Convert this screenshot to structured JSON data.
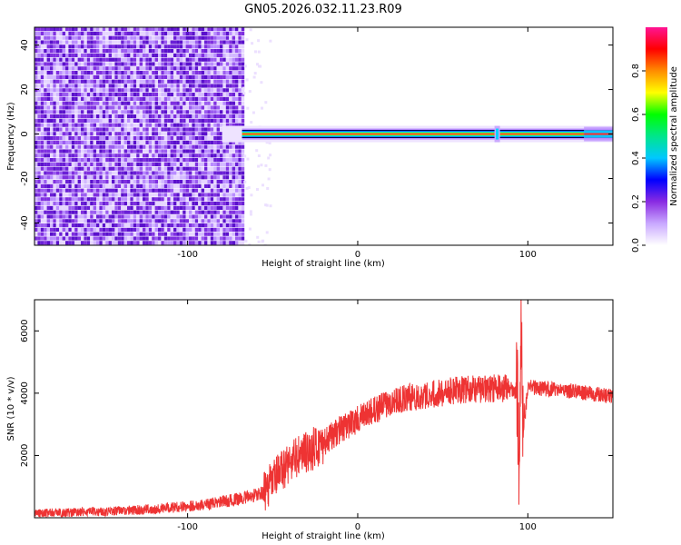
{
  "figure": {
    "title": "GN05.2026.032.11.23.R09"
  },
  "chart_data": [
    {
      "type": "heatmap",
      "xlabel": "Height of straight line (km)",
      "ylabel": "Frequency (Hz)",
      "xlim": [
        -190,
        150
      ],
      "ylim": [
        -50,
        48
      ],
      "x_ticks": [
        -100,
        0,
        100
      ],
      "y_ticks": [
        -40,
        -20,
        0,
        20,
        40
      ],
      "grid": false,
      "colorbar": {
        "label": "Normalized spectral amplitude",
        "range": [
          0,
          1
        ],
        "ticks": [
          0.0,
          0.2,
          0.4,
          0.6,
          0.8
        ],
        "colormap": [
          "#ffffff",
          "#c9a8ff",
          "#8a2be2",
          "#0000ff",
          "#00c8ff",
          "#00e68c",
          "#00ff00",
          "#ffff00",
          "#ff8c00",
          "#ff0000",
          "#ff1493"
        ]
      },
      "noise_region_x": [
        -190,
        -68
      ],
      "carrier": {
        "x": [
          -68,
          150
        ],
        "frequency": 0,
        "amplitude": 1.0
      },
      "burst_x": 82,
      "late_spread_x": [
        133,
        150
      ]
    },
    {
      "type": "line",
      "xlabel": "Height of straight line (km)",
      "ylabel": "SNR (10 * v/v)",
      "xlim": [
        -190,
        150
      ],
      "ylim": [
        0,
        7000
      ],
      "x_ticks": [
        -100,
        0,
        100
      ],
      "y_ticks": [
        2000,
        4000,
        6000
      ],
      "grid": false,
      "series": [
        {
          "color": "#ee3333",
          "x": [
            -190,
            -170,
            -150,
            -130,
            -110,
            -90,
            -70,
            -55,
            -50,
            -45,
            -40,
            -30,
            -20,
            -10,
            0,
            10,
            20,
            40,
            60,
            80,
            90,
            94,
            95,
            96,
            97,
            100,
            120,
            150
          ],
          "y": [
            150,
            170,
            200,
            250,
            320,
            420,
            600,
            800,
            1150,
            1500,
            1800,
            2100,
            2400,
            2850,
            3150,
            3450,
            3750,
            3950,
            4100,
            4150,
            4150,
            3900,
            1200,
            6950,
            2500,
            4200,
            4100,
            3900
          ]
        }
      ]
    }
  ]
}
